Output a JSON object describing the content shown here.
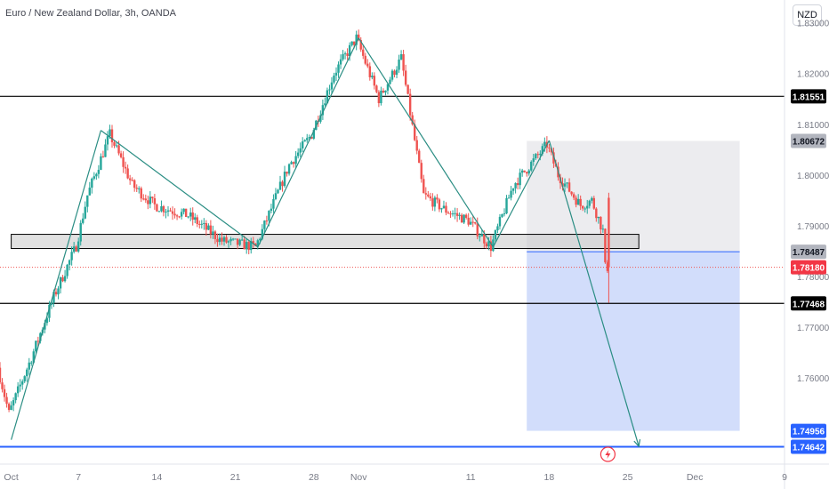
{
  "title": "Euro / New Zealand Dollar, 3h, OANDA",
  "currency_button": "NZD",
  "colors": {
    "up": "#26a69a",
    "down": "#ef5350",
    "level": "#000000",
    "blue_level": "#2962ff",
    "target_zone": "#d2ddfb",
    "stop_zone": "#ececef",
    "pattern_line": "#2a8d83"
  },
  "icons": {
    "event": "lightning-icon"
  },
  "chart_data": {
    "type": "candlestick",
    "title": "Euro / New Zealand Dollar, 3h, OANDA",
    "xlabel": "",
    "ylabel": "",
    "ylim": [
      1.743,
      1.8345
    ],
    "xlim": [
      "2024-09-30",
      "2024-12-09"
    ],
    "x_ticks": [
      {
        "date": "2024-10-01",
        "label": "Oct"
      },
      {
        "date": "2024-10-07",
        "label": "7"
      },
      {
        "date": "2024-10-14",
        "label": "14"
      },
      {
        "date": "2024-10-21",
        "label": "21"
      },
      {
        "date": "2024-10-28",
        "label": "28"
      },
      {
        "date": "2024-11-01",
        "label": "Nov"
      },
      {
        "date": "2024-11-11",
        "label": "11"
      },
      {
        "date": "2024-11-18",
        "label": "18"
      },
      {
        "date": "2024-11-25",
        "label": "25"
      },
      {
        "date": "2024-12-01",
        "label": "Dec"
      },
      {
        "date": "2024-12-09",
        "label": "9"
      }
    ],
    "y_ticks": [
      {
        "value": 1.83,
        "label": "1.83000"
      },
      {
        "value": 1.82,
        "label": "1.82000"
      },
      {
        "value": 1.81,
        "label": "1.81000"
      },
      {
        "value": 1.8,
        "label": "1.80000"
      },
      {
        "value": 1.79,
        "label": "1.79000"
      },
      {
        "value": 1.78,
        "label": "1.78000"
      },
      {
        "value": 1.77,
        "label": "1.77000"
      },
      {
        "value": 1.76,
        "label": "1.76000"
      }
    ],
    "price_path": [
      {
        "date": "2024-09-30",
        "price": 1.762
      },
      {
        "date": "2024-10-01",
        "price": 1.753
      },
      {
        "date": "2024-10-03",
        "price": 1.764
      },
      {
        "date": "2024-10-05",
        "price": 1.776
      },
      {
        "date": "2024-10-07",
        "price": 1.786
      },
      {
        "date": "2024-10-08",
        "price": 1.796
      },
      {
        "date": "2024-10-10",
        "price": 1.808
      },
      {
        "date": "2024-10-12",
        "price": 1.798
      },
      {
        "date": "2024-10-14",
        "price": 1.794
      },
      {
        "date": "2024-10-17",
        "price": 1.792
      },
      {
        "date": "2024-10-20",
        "price": 1.787
      },
      {
        "date": "2024-10-23",
        "price": 1.7858
      },
      {
        "date": "2024-10-26",
        "price": 1.802
      },
      {
        "date": "2024-10-28",
        "price": 1.808
      },
      {
        "date": "2024-10-30",
        "price": 1.82
      },
      {
        "date": "2024-11-01",
        "price": 1.827
      },
      {
        "date": "2024-11-03",
        "price": 1.815
      },
      {
        "date": "2024-11-05",
        "price": 1.823
      },
      {
        "date": "2024-11-07",
        "price": 1.796
      },
      {
        "date": "2024-11-09",
        "price": 1.793
      },
      {
        "date": "2024-11-11",
        "price": 1.791
      },
      {
        "date": "2024-11-13",
        "price": 1.7858
      },
      {
        "date": "2024-11-15",
        "price": 1.798
      },
      {
        "date": "2024-11-18",
        "price": 1.806
      },
      {
        "date": "2024-11-19",
        "price": 1.8
      },
      {
        "date": "2024-11-21",
        "price": 1.794
      },
      {
        "date": "2024-11-22",
        "price": 1.795
      },
      {
        "date": "2024-11-23",
        "price": 1.789
      },
      {
        "date": "2024-11-23",
        "price": 1.7818
      }
    ],
    "levels": [
      {
        "value": 1.81551,
        "label": "1.81551",
        "style": "black"
      },
      {
        "value": 1.80672,
        "label": "1.80672",
        "style": "gray"
      },
      {
        "value": 1.78487,
        "label": "1.78487",
        "style": "gray"
      },
      {
        "value": 1.7818,
        "label": "1.78180",
        "style": "red"
      },
      {
        "value": 1.77468,
        "label": "1.77468",
        "style": "black"
      },
      {
        "value": 1.74956,
        "label": "1.74956",
        "style": "blue"
      },
      {
        "value": 1.74642,
        "label": "1.74642",
        "style": "blue"
      }
    ],
    "support_zone": {
      "start": "2024-10-01",
      "end": "2024-11-26",
      "low": 1.7855,
      "high": 1.7883
    },
    "trade": {
      "start": "2024-11-16",
      "end": "2024-12-05",
      "stop": 1.80672,
      "entry": 1.78487,
      "target": 1.74956
    },
    "pattern": [
      {
        "date": "2024-10-01",
        "price": 1.7478
      },
      {
        "date": "2024-10-09",
        "price": 1.8088
      },
      {
        "date": "2024-10-23",
        "price": 1.7858
      },
      {
        "date": "2024-11-01",
        "price": 1.827
      },
      {
        "date": "2024-11-13",
        "price": 1.7858
      },
      {
        "date": "2024-11-18",
        "price": 1.8068
      },
      {
        "date": "2024-11-26",
        "price": 1.7465
      }
    ],
    "current_price": 1.7818
  }
}
